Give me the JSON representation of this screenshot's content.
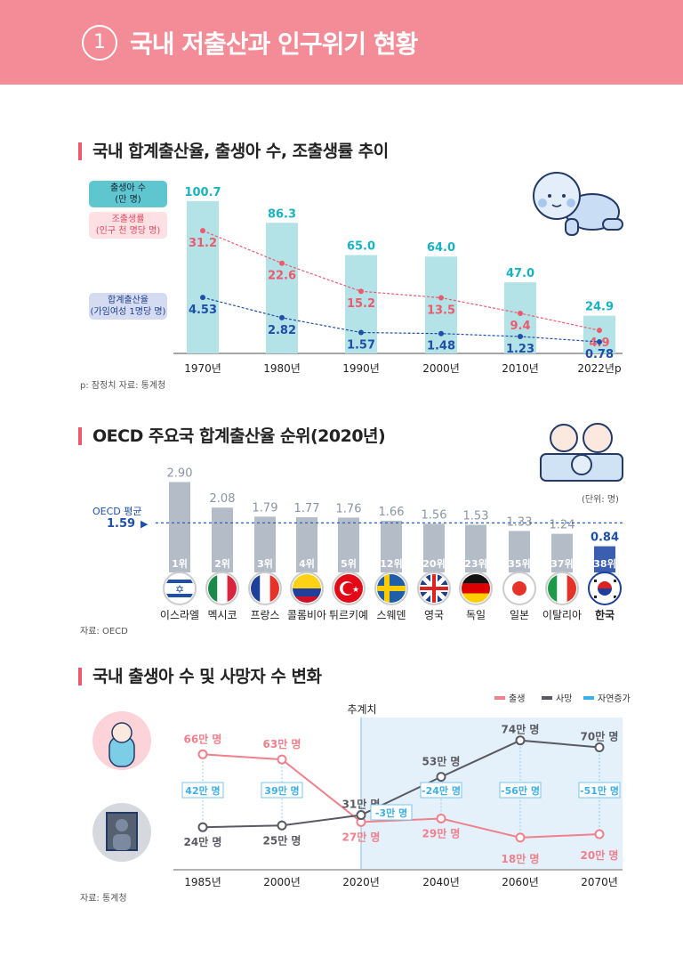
{
  "header": {
    "number": "1",
    "title": "국내 저출산과 인구위기 현황"
  },
  "section1": {
    "title": "국내 합계출산율, 출생아 수, 조출생률 추이",
    "footnote": "p: 잠정치   자료: 통계청"
  },
  "section2": {
    "title": "OECD 주요국 합계출산율 순위(2020년)",
    "unit": "(단위: 명)",
    "avg_label": "OECD 평균",
    "avg_value": "1.59",
    "source": "자료: OECD"
  },
  "section3": {
    "title": "국내 출생아 수 및 사망자 수 변화",
    "projection_label": "추계치",
    "source": "자료: 통계청"
  },
  "chart_data": [
    {
      "type": "bar+line",
      "categories": [
        "1970년",
        "1980년",
        "1990년",
        "2000년",
        "2010년",
        "2022년p"
      ],
      "series": [
        {
          "name": "출생아 수 (만 명)",
          "name_lines": [
            "출생아 수",
            "(만 명)"
          ],
          "type": "bar",
          "color": "#b3e3e6",
          "label_color": "#17b3c3",
          "values": [
            100.7,
            86.3,
            65.0,
            64.0,
            47.0,
            24.9
          ],
          "labels": [
            "100.7",
            "86.3",
            "65.0",
            "64.0",
            "47.0",
            "24.9"
          ]
        },
        {
          "name": "조출생률 (인구 천 명당 명)",
          "name_lines": [
            "조출생률",
            "(인구 천 명당 명)"
          ],
          "type": "line",
          "color": "#ec5a6e",
          "values": [
            31.2,
            22.6,
            15.2,
            13.5,
            9.4,
            4.9
          ],
          "labels": [
            "31.2",
            "22.6",
            "15.2",
            "13.5",
            "9.4",
            "4.9"
          ]
        },
        {
          "name": "합계출산율 (가임여성 1명당 명)",
          "name_lines": [
            "합계출산율",
            "(가임여성 1명당 명)"
          ],
          "type": "line",
          "color": "#1f4fa8",
          "values": [
            4.53,
            2.82,
            1.57,
            1.48,
            1.23,
            0.78
          ],
          "labels": [
            "4.53",
            "2.82",
            "1.57",
            "1.48",
            "1.23",
            "0.78"
          ]
        }
      ]
    },
    {
      "type": "bar",
      "categories": [
        "이스라엘",
        "멕시코",
        "프랑스",
        "콜롬비아",
        "튀르키예",
        "스웨덴",
        "영국",
        "독일",
        "일본",
        "이탈리아",
        "한국"
      ],
      "values": [
        2.9,
        2.08,
        1.79,
        1.77,
        1.76,
        1.66,
        1.56,
        1.53,
        1.33,
        1.24,
        0.84
      ],
      "labels": [
        "2.90",
        "2.08",
        "1.79",
        "1.77",
        "1.76",
        "1.66",
        "1.56",
        "1.53",
        "1.33",
        "1.24",
        "0.84"
      ],
      "ranks": [
        "1",
        "2",
        "3",
        "4",
        "5",
        "12",
        "20",
        "23",
        "35",
        "37",
        "38"
      ],
      "rank_suffix": "위",
      "flags": [
        "flag-israel",
        "flag-mexico",
        "flag-france",
        "flag-colombia",
        "flag-turkiye",
        "flag-sweden",
        "flag-uk",
        "flag-germany",
        "flag-japan",
        "flag-italy",
        "flag-korea"
      ],
      "reference_line": {
        "label": "OECD 평균",
        "value": 1.59
      },
      "highlight": "한국",
      "bar_color": "#b4bcc8",
      "highlight_color": "#3a5fb0"
    },
    {
      "type": "line",
      "categories": [
        "1985년",
        "2000년",
        "2020년",
        "2040년",
        "2060년",
        "2070년"
      ],
      "unit": "만 명",
      "projection_from": "2020년",
      "series": [
        {
          "name": "출생",
          "color": "#f0808c",
          "values": [
            66,
            63,
            27,
            29,
            18,
            20
          ]
        },
        {
          "name": "사망",
          "color": "#5a5a63",
          "values": [
            24,
            25,
            31,
            53,
            74,
            70
          ]
        },
        {
          "name": "자연증가",
          "color": "#3cb0e6",
          "values": [
            42,
            39,
            -3,
            -24,
            -56,
            -51
          ]
        }
      ]
    }
  ]
}
